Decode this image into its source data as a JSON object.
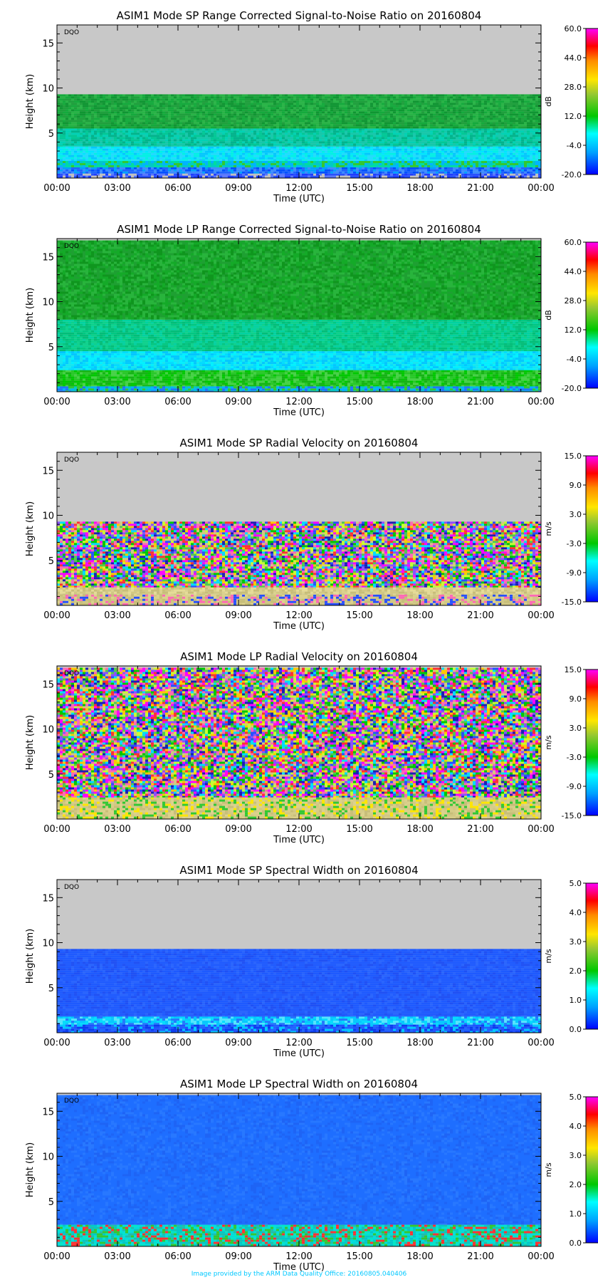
{
  "footer": "Image provided by the ARM Data Quality Office: 20160805.040406",
  "chart_data": [
    {
      "type": "heatmap",
      "title": "ASIM1 Mode SP Range Corrected Signal-to-Noise Ratio on 20160804",
      "xlabel": "Time (UTC)",
      "ylabel": "Height (km)",
      "x_ticks": [
        "00:00",
        "03:00",
        "06:00",
        "09:00",
        "12:00",
        "15:00",
        "18:00",
        "21:00",
        "00:00"
      ],
      "y_ticks": [
        5,
        10,
        15
      ],
      "ylim": [
        0,
        17
      ],
      "tag": "DQO",
      "colorbar": {
        "unit": "dB",
        "ticks": [
          "60.0",
          "44.0",
          "28.0",
          "12.0",
          "-4.0",
          "-20.0"
        ],
        "range": [
          -20,
          60
        ]
      },
      "data_top_km": 9.3,
      "layers": [
        {
          "from_km": 0.0,
          "to_km": 0.5,
          "colors": [
            "#1e3cff",
            "#5a78ff",
            "#c0c0c0",
            "#2850ff"
          ]
        },
        {
          "from_km": 0.5,
          "to_km": 1.2,
          "colors": [
            "#1e64ff",
            "#00a0ff",
            "#3c8cff",
            "#0050ff"
          ]
        },
        {
          "from_km": 1.2,
          "to_km": 1.9,
          "colors": [
            "#00c8c8",
            "#32c832",
            "#00b4ff",
            "#00dca0"
          ]
        },
        {
          "from_km": 1.9,
          "to_km": 3.5,
          "colors": [
            "#00e6ff",
            "#00c8ff",
            "#00f0e6",
            "#1edcff"
          ]
        },
        {
          "from_km": 3.5,
          "to_km": 5.5,
          "colors": [
            "#00d2b4",
            "#00c896",
            "#14c8aa",
            "#00b48c"
          ]
        },
        {
          "from_km": 5.5,
          "to_km": 9.3,
          "colors": [
            "#14aa3c",
            "#1ea03c",
            "#28b446",
            "#0f9632"
          ]
        }
      ]
    },
    {
      "type": "heatmap",
      "title": "ASIM1 Mode LP Range Corrected Signal-to-Noise Ratio on 20160804",
      "xlabel": "Time (UTC)",
      "ylabel": "Height (km)",
      "x_ticks": [
        "00:00",
        "03:00",
        "06:00",
        "09:00",
        "12:00",
        "15:00",
        "18:00",
        "21:00",
        "00:00"
      ],
      "y_ticks": [
        5,
        10,
        15
      ],
      "ylim": [
        0,
        17
      ],
      "tag": "DQO",
      "colorbar": {
        "unit": "dB",
        "ticks": [
          "60.0",
          "44.0",
          "28.0",
          "12.0",
          "-4.0",
          "-20.0"
        ],
        "range": [
          -20,
          60
        ]
      },
      "data_top_km": 16.8,
      "layers": [
        {
          "from_km": 0.0,
          "to_km": 0.6,
          "colors": [
            "#00b4ff",
            "#32c832",
            "#1e78ff",
            "#00c8c8"
          ]
        },
        {
          "from_km": 0.6,
          "to_km": 2.4,
          "colors": [
            "#28c828",
            "#00c800",
            "#46d246",
            "#14b414"
          ]
        },
        {
          "from_km": 2.4,
          "to_km": 4.5,
          "colors": [
            "#00f0ff",
            "#00dcff",
            "#14e6f0",
            "#00c8ff"
          ]
        },
        {
          "from_km": 4.5,
          "to_km": 8.0,
          "colors": [
            "#00d2a0",
            "#00c882",
            "#0ad28c",
            "#00be78"
          ]
        },
        {
          "from_km": 8.0,
          "to_km": 16.8,
          "colors": [
            "#14aa28",
            "#1ea032",
            "#28b43c",
            "#0f961e"
          ]
        }
      ]
    },
    {
      "type": "heatmap",
      "title": "ASIM1 Mode SP Radial Velocity  on 20160804",
      "xlabel": "Time (UTC)",
      "ylabel": "Height (km)",
      "x_ticks": [
        "00:00",
        "03:00",
        "06:00",
        "09:00",
        "12:00",
        "15:00",
        "18:00",
        "21:00",
        "00:00"
      ],
      "y_ticks": [
        5,
        10,
        15
      ],
      "ylim": [
        0,
        17
      ],
      "tag": "DQO",
      "colorbar": {
        "unit": "m/s",
        "ticks": [
          "15.0",
          "9.0",
          "3.0",
          "-3.0",
          "-9.0",
          "-15.0"
        ],
        "range": [
          -15,
          15
        ]
      },
      "data_top_km": 9.3,
      "layers": [
        {
          "from_km": 0.0,
          "to_km": 1.2,
          "colors": [
            "#d2c882",
            "#c8be78",
            "#dcd28c",
            "#ff69b4",
            "#2850ff"
          ]
        },
        {
          "from_km": 1.2,
          "to_km": 2.0,
          "colors": [
            "#d2c882",
            "#c8be78",
            "#dcd28c",
            "#e6dc96"
          ]
        },
        {
          "from_km": 2.0,
          "to_km": 9.3,
          "colors": [
            "#ff00ff",
            "#00c800",
            "#2850ff",
            "#ffc800",
            "#00dcff",
            "#ff3232",
            "#d2c882",
            "#8c50ff",
            "#ff69b4",
            "#50c850",
            "#c8ff32",
            "#1e1eb4"
          ]
        }
      ]
    },
    {
      "type": "heatmap",
      "title": "ASIM1 Mode LP Radial Velocity  on 20160804",
      "xlabel": "Time (UTC)",
      "ylabel": "Height (km)",
      "x_ticks": [
        "00:00",
        "03:00",
        "06:00",
        "09:00",
        "12:00",
        "15:00",
        "18:00",
        "21:00",
        "00:00"
      ],
      "y_ticks": [
        5,
        10,
        15
      ],
      "ylim": [
        0,
        17
      ],
      "tag": "DQO",
      "colorbar": {
        "unit": "m/s",
        "ticks": [
          "15.0",
          "9.0",
          "3.0",
          "-3.0",
          "-9.0",
          "-15.0"
        ],
        "range": [
          -15,
          15
        ]
      },
      "data_top_km": 16.8,
      "layers": [
        {
          "from_km": 0.0,
          "to_km": 2.4,
          "colors": [
            "#d2c882",
            "#c8be78",
            "#dcd28c",
            "#d7cd87",
            "#ffe600",
            "#32c832"
          ]
        },
        {
          "from_km": 2.4,
          "to_km": 16.8,
          "colors": [
            "#ff00ff",
            "#00c800",
            "#2850ff",
            "#ffc800",
            "#00dcff",
            "#ff3232",
            "#d2c882",
            "#8c50ff",
            "#ff69b4",
            "#50c850",
            "#c8ff32",
            "#1e1eb4"
          ]
        }
      ]
    },
    {
      "type": "heatmap",
      "title": "ASIM1 Mode SP Spectral Width  on 20160804",
      "xlabel": "Time (UTC)",
      "ylabel": "Height (km)",
      "x_ticks": [
        "00:00",
        "03:00",
        "06:00",
        "09:00",
        "12:00",
        "15:00",
        "18:00",
        "21:00",
        "00:00"
      ],
      "y_ticks": [
        5,
        10,
        15
      ],
      "ylim": [
        0,
        17
      ],
      "tag": "DQO",
      "colorbar": {
        "unit": "m/s",
        "ticks": [
          "5.0",
          "4.0",
          "3.0",
          "2.0",
          "1.0",
          "0.0"
        ],
        "range": [
          0,
          5
        ]
      },
      "data_top_km": 9.3,
      "layers": [
        {
          "from_km": 0.0,
          "to_km": 0.9,
          "colors": [
            "#1e50ff",
            "#0a3cf0",
            "#00c8ff",
            "#1e64ff"
          ]
        },
        {
          "from_km": 0.9,
          "to_km": 1.8,
          "colors": [
            "#00dcff",
            "#00c8ff",
            "#1e78ff",
            "#50e6ff"
          ]
        },
        {
          "from_km": 1.8,
          "to_km": 9.3,
          "colors": [
            "#1e5aff",
            "#1e5aff",
            "#1e5aff",
            "#1e50f5",
            "#2864ff"
          ]
        }
      ]
    },
    {
      "type": "heatmap",
      "title": "ASIM1 Mode LP Spectral Width  on 20160804",
      "xlabel": "Time (UTC)",
      "ylabel": "Height (km)",
      "x_ticks": [
        "00:00",
        "03:00",
        "06:00",
        "09:00",
        "12:00",
        "15:00",
        "18:00",
        "21:00",
        "00:00"
      ],
      "y_ticks": [
        5,
        10,
        15
      ],
      "ylim": [
        0,
        17
      ],
      "tag": "DQO",
      "colorbar": {
        "unit": "m/s",
        "ticks": [
          "5.0",
          "4.0",
          "3.0",
          "2.0",
          "1.0",
          "0.0"
        ],
        "range": [
          0,
          5
        ]
      },
      "data_top_km": 16.8,
      "layers": [
        {
          "from_km": 0.0,
          "to_km": 2.4,
          "colors": [
            "#00dcdc",
            "#00c8c8",
            "#32c832",
            "#1ebeaa",
            "#ff3232",
            "#00e6c8"
          ]
        },
        {
          "from_km": 2.4,
          "to_km": 16.8,
          "colors": [
            "#1e6eff",
            "#1e6eff",
            "#1e6eff",
            "#1e64f5",
            "#2878ff"
          ]
        }
      ]
    }
  ]
}
